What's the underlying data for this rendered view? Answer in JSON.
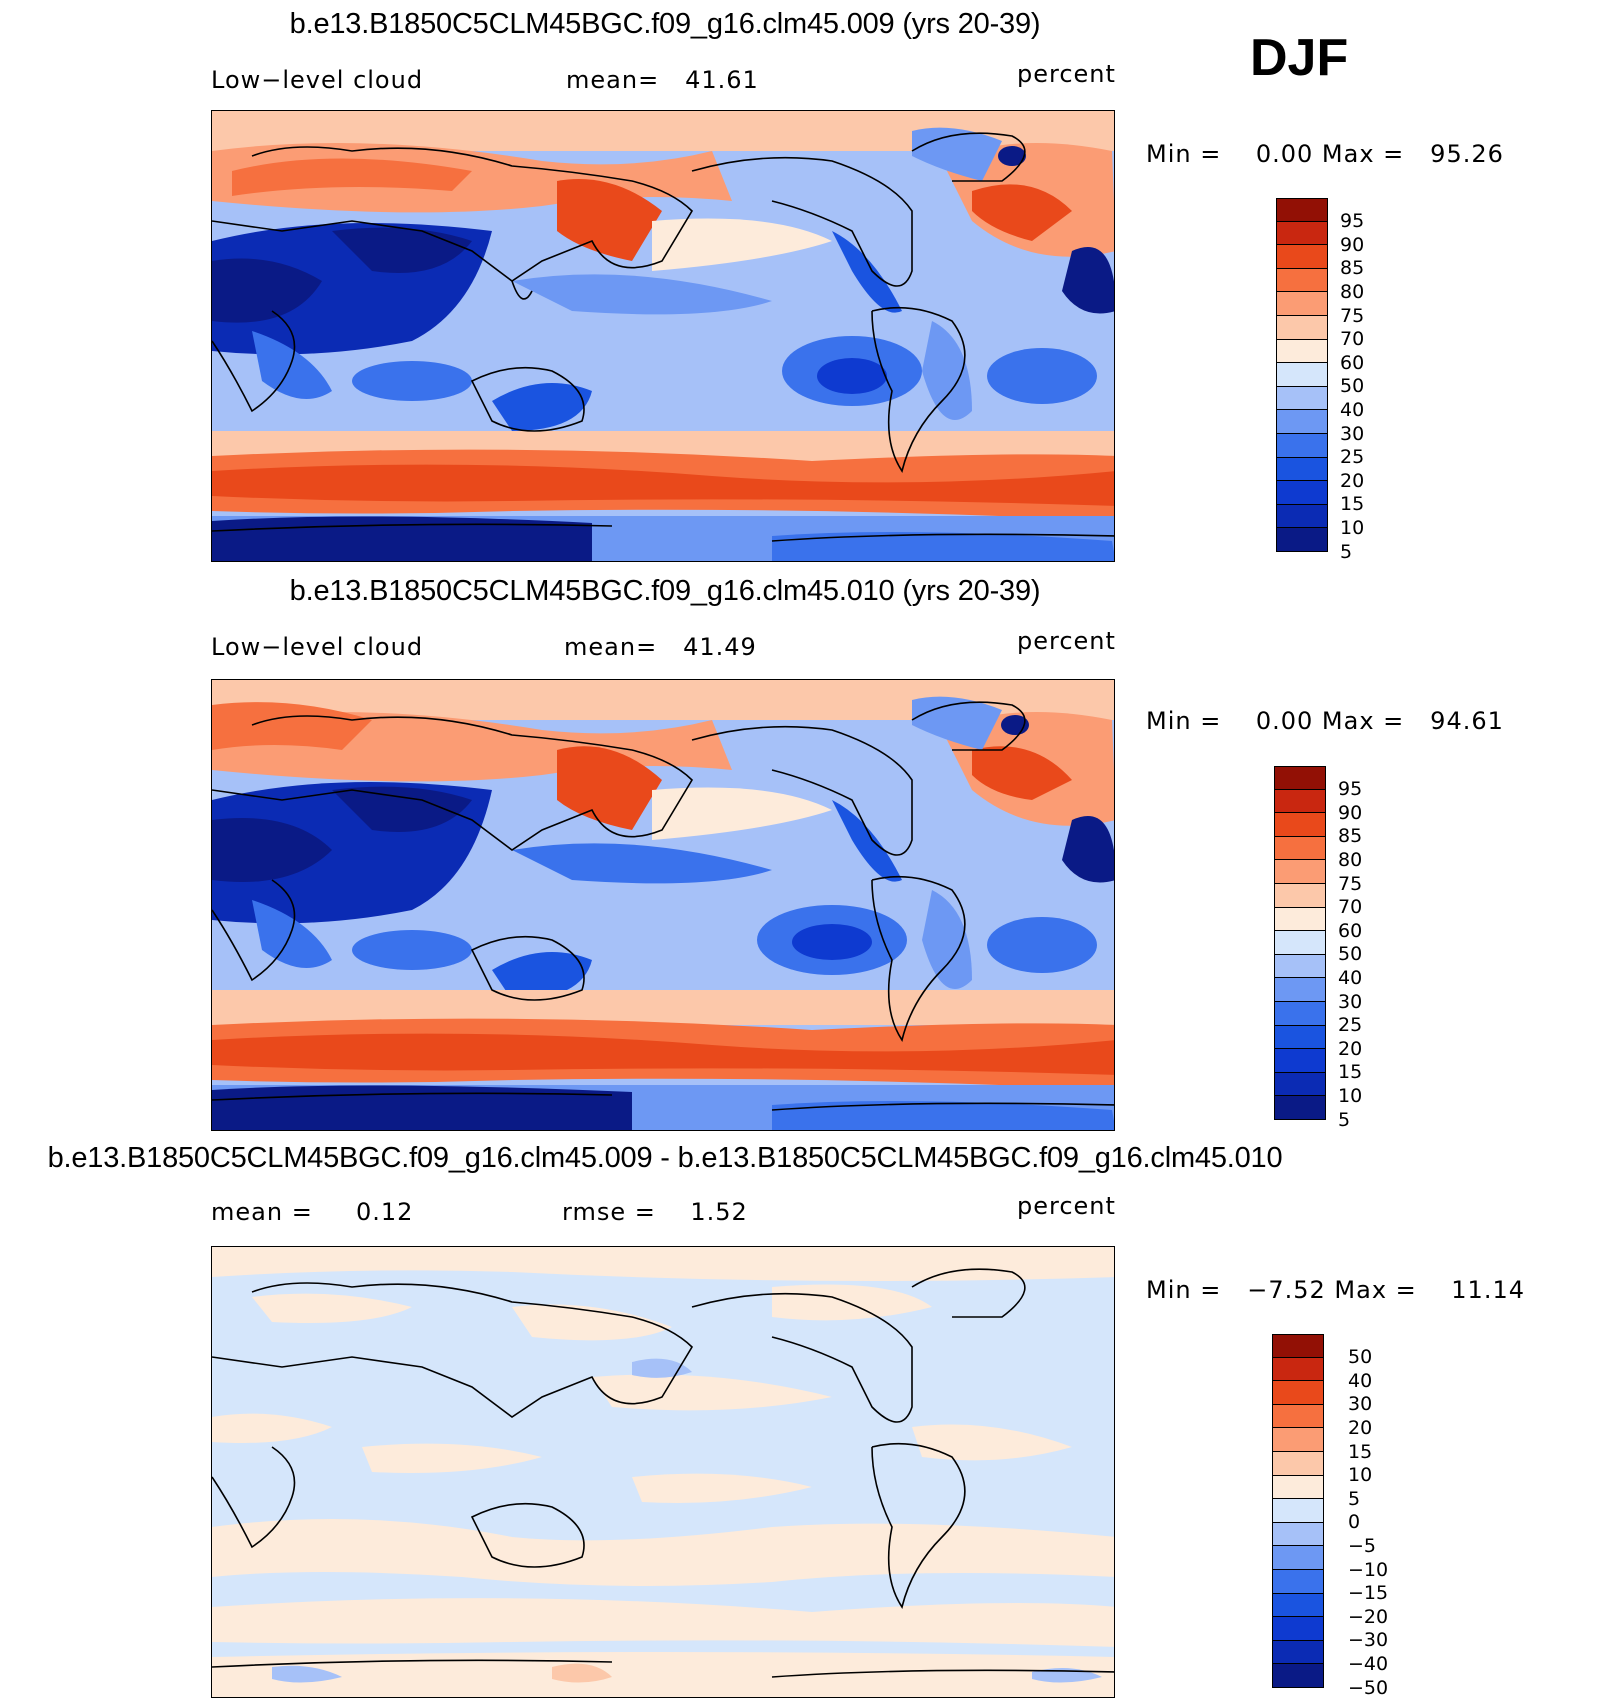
{
  "season": "DJF",
  "palettes": {
    "abs": [
      "#0a1a86",
      "#0b2bb4",
      "#0e3ad0",
      "#1a54e0",
      "#3a72ec",
      "#6d98f3",
      "#a6c1f8",
      "#d5e6fb",
      "#fdebdb",
      "#fcc8aa",
      "#fb9c74",
      "#f6703f",
      "#e9491b",
      "#c92710",
      "#921005"
    ],
    "diff": [
      "#0a1a86",
      "#0b2bb4",
      "#0e3ad0",
      "#1a54e0",
      "#3a72ec",
      "#6d98f3",
      "#a6c1f8",
      "#d5e6fb",
      "#fdebdb",
      "#fcc8aa",
      "#fb9c74",
      "#f6703f",
      "#e9491b",
      "#c92710",
      "#921005"
    ]
  },
  "panels": [
    {
      "title": "b.e13.B1850C5CLM45BGC.f09_g16.clm45.009 (yrs 20-39)",
      "left_label": "Low−level cloud",
      "mid_label": "mean=",
      "mid_value": "41.61",
      "units": "percent",
      "min_label": "Min =",
      "min_value": "0.00",
      "max_label": "Max =",
      "max_value": "95.26",
      "levels": [
        "95",
        "90",
        "85",
        "80",
        "75",
        "70",
        "60",
        "50",
        "40",
        "30",
        "25",
        "20",
        "15",
        "10",
        "5"
      ]
    },
    {
      "title": "b.e13.B1850C5CLM45BGC.f09_g16.clm45.010 (yrs 20-39)",
      "left_label": "Low−level cloud",
      "mid_label": "mean=",
      "mid_value": "41.49",
      "units": "percent",
      "min_label": "Min =",
      "min_value": "0.00",
      "max_label": "Max =",
      "max_value": "94.61",
      "levels": [
        "95",
        "90",
        "85",
        "80",
        "75",
        "70",
        "60",
        "50",
        "40",
        "30",
        "25",
        "20",
        "15",
        "10",
        "5"
      ]
    },
    {
      "title": "b.e13.B1850C5CLM45BGC.f09_g16.clm45.009 - b.e13.B1850C5CLM45BGC.f09_g16.clm45.010",
      "left_label": "mean =",
      "left_value": "0.12",
      "mid_label": "rmse =",
      "mid_value": "1.52",
      "units": "percent",
      "min_label": "Min =",
      "min_value": "−7.52",
      "max_label": "Max =",
      "max_value": "11.14",
      "levels": [
        "50",
        "40",
        "30",
        "20",
        "15",
        "10",
        "5",
        "0",
        "−5",
        "−10",
        "−15",
        "−20",
        "−30",
        "−40",
        "−50"
      ]
    }
  ]
}
